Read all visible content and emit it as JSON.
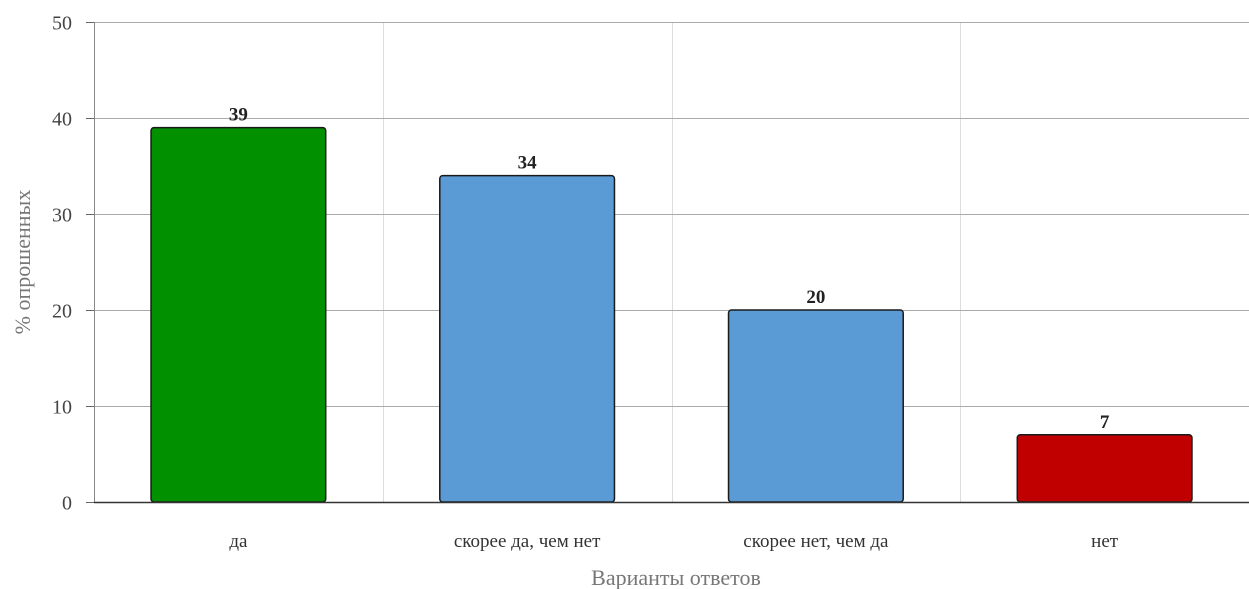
{
  "chart_data": {
    "type": "bar",
    "categories": [
      "да",
      "скорее да, чем нет",
      "скорее нет, чем да",
      "нет"
    ],
    "values": [
      39,
      34,
      20,
      7
    ],
    "value_labels": [
      "39",
      "34",
      "20",
      "7"
    ],
    "colors": [
      "#009000",
      "#5b9bd5",
      "#5b9bd5",
      "#c00000"
    ],
    "xlabel": "Варианты ответов",
    "ylabel": "% опрошенных",
    "ylim": [
      0,
      50
    ],
    "yticks": [
      0,
      10,
      20,
      30,
      40,
      50
    ],
    "ytick_labels": [
      "0",
      "10",
      "20",
      "30",
      "40",
      "50"
    ],
    "grid": true,
    "legend": "none"
  }
}
